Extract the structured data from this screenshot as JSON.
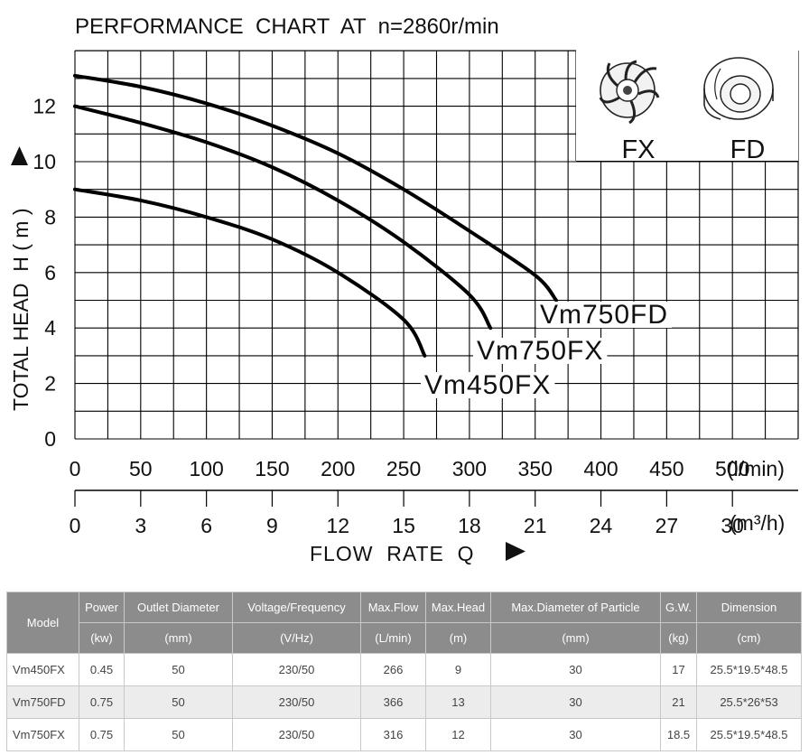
{
  "chart_data": {
    "type": "line",
    "title": "PERFORMANCE  CHART  AT  n=2860r/min",
    "ylabel": "TOTAL HEAD  H ( m )",
    "xlabel": "FLOW  RATE  Q",
    "ylim": [
      0,
      14
    ],
    "xlim": [
      0,
      550
    ],
    "y_ticks": [
      "0",
      "2",
      "4",
      "6",
      "8",
      "10",
      "12"
    ],
    "x_ticks_lmin": [
      "0",
      "50",
      "100",
      "150",
      "200",
      "250",
      "300",
      "350",
      "400",
      "450",
      "500"
    ],
    "x_unit_lmin": "(l/min)",
    "x_ticks_m3h": [
      "0",
      "3",
      "6",
      "9",
      "12",
      "15",
      "18",
      "21",
      "24",
      "27",
      "30"
    ],
    "x_unit_m3h": "(m³/h)",
    "grid": true,
    "series": [
      {
        "name": "Vm750FD",
        "points": [
          [
            0,
            13.1
          ],
          [
            50,
            12.7
          ],
          [
            100,
            12.1
          ],
          [
            150,
            11.3
          ],
          [
            200,
            10.3
          ],
          [
            250,
            9.0
          ],
          [
            300,
            7.5
          ],
          [
            350,
            5.9
          ],
          [
            366,
            5.0
          ]
        ]
      },
      {
        "name": "Vm750FX",
        "points": [
          [
            0,
            12.0
          ],
          [
            50,
            11.4
          ],
          [
            100,
            10.7
          ],
          [
            150,
            9.8
          ],
          [
            200,
            8.6
          ],
          [
            250,
            7.1
          ],
          [
            300,
            5.2
          ],
          [
            316,
            4.0
          ]
        ]
      },
      {
        "name": "Vm450FX",
        "points": [
          [
            0,
            9.0
          ],
          [
            50,
            8.6
          ],
          [
            100,
            8.0
          ],
          [
            150,
            7.2
          ],
          [
            200,
            6.0
          ],
          [
            250,
            4.3
          ],
          [
            266,
            3.0
          ]
        ]
      }
    ],
    "impeller_labels": [
      "FX",
      "FD"
    ]
  },
  "table": {
    "headers": [
      {
        "top": "Model",
        "bottom": ""
      },
      {
        "top": "Power",
        "bottom": "(kw)"
      },
      {
        "top": "Outlet Diameter",
        "bottom": "(mm)"
      },
      {
        "top": "Voltage/Frequency",
        "bottom": "(V/Hz)"
      },
      {
        "top": "Max.Flow",
        "bottom": "(L/min)"
      },
      {
        "top": "Max.Head",
        "bottom": "(m)"
      },
      {
        "top": "Max.Diameter of Particle",
        "bottom": "(mm)"
      },
      {
        "top": "G.W.",
        "bottom": "(kg)"
      },
      {
        "top": "Dimension",
        "bottom": "(cm)"
      }
    ],
    "rows": [
      [
        "Vm450FX",
        "0.45",
        "50",
        "230/50",
        "266",
        "9",
        "30",
        "17",
        "25.5*19.5*48.5"
      ],
      [
        "Vm750FD",
        "0.75",
        "50",
        "230/50",
        "366",
        "13",
        "30",
        "21",
        "25.5*26*53"
      ],
      [
        "Vm750FX",
        "0.75",
        "50",
        "230/50",
        "316",
        "12",
        "30",
        "18.5",
        "25.5*19.5*48.5"
      ]
    ]
  }
}
